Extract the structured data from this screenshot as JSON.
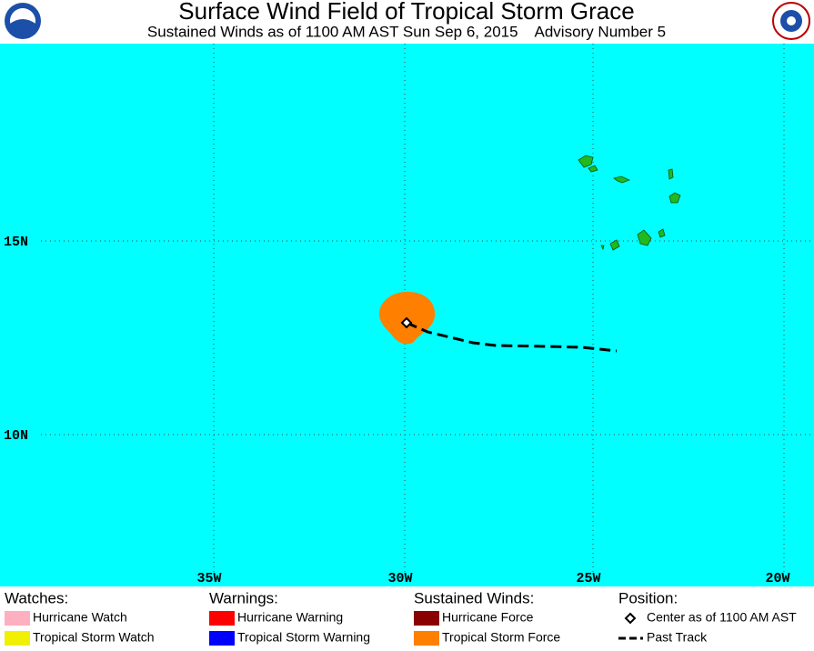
{
  "header": {
    "title": "Surface Wind Field of Tropical Storm Grace",
    "subtitle": "Sustained Winds as of 1100 AM AST Sun Sep 6, 2015    Advisory Number 5"
  },
  "map": {
    "lat_labels": [
      "15N",
      "10N"
    ],
    "lon_labels": [
      "35W",
      "30W",
      "25W",
      "20W"
    ]
  },
  "legend": [
    {
      "heading": "Watches:",
      "items": [
        "Hurricane Watch",
        "Tropical Storm Watch"
      ]
    },
    {
      "heading": "Warnings:",
      "items": [
        "Hurricane Warning",
        "Tropical Storm Warning"
      ]
    },
    {
      "heading": "Sustained Winds:",
      "items": [
        "Hurricane Force",
        "Tropical Storm Force"
      ]
    },
    {
      "heading": "Position:",
      "items": [
        "Center as of 1100 AM AST",
        "Past Track"
      ]
    }
  ]
}
